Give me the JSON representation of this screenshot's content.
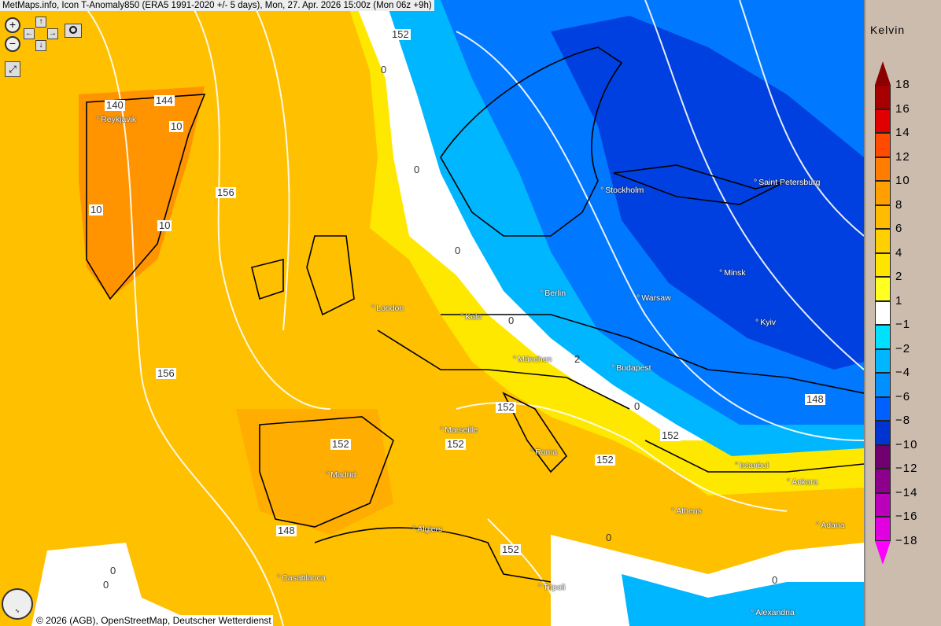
{
  "header": {
    "title": "MetMaps.info, Icon T-Anomaly850 (ERA5 1991-2020 +/- 5 days), Mon, 27. Apr. 2026 15:00z (Mon 06z +9h)"
  },
  "controls": {
    "zoom_in": "zoom-in-icon",
    "zoom_out": "zoom-out-icon",
    "pan_up": "↑",
    "pan_down": "↓",
    "pan_left": "←",
    "pan_right": "→",
    "camera": "camera-icon",
    "fullscreen": "fullscreen-icon"
  },
  "cities": [
    "Reykjavik",
    "London",
    "Koln",
    "Berlin",
    "Stockholm",
    "Saint Petersburg",
    "Minsk",
    "Warsaw",
    "Kyiv",
    "München",
    "Budapest",
    "Marseille",
    "Roma",
    "Madrid",
    "Istanbul",
    "Ankara",
    "Athens",
    "Adana",
    "Algiers",
    "Casablanca",
    "Tripoli",
    "Alexandria"
  ],
  "contour_labels": [
    "152",
    "0",
    "140",
    "144",
    "10",
    "156",
    "10",
    "10",
    "0",
    "0",
    "0",
    "156",
    "2",
    "152",
    "0",
    "148",
    "152",
    "152",
    "152",
    "152",
    "148",
    "152",
    "0",
    "0",
    "0",
    "0"
  ],
  "legend": {
    "unit": "Kelvin",
    "labels": [
      "18",
      "16",
      "14",
      "12",
      "10",
      "8",
      "6",
      "4",
      "2",
      "1",
      "−1",
      "−2",
      "−4",
      "−6",
      "−8",
      "−10",
      "−12",
      "−14",
      "−16",
      "−18"
    ],
    "colors": [
      "#a80000",
      "#e00000",
      "#ff4a00",
      "#ff7d00",
      "#ff9f00",
      "#ffbb00",
      "#ffd000",
      "#ffe400",
      "#ffff20",
      "#ffffff",
      "#00e0ff",
      "#00b6ff",
      "#0090ff",
      "#0060ff",
      "#0034d0",
      "#700070",
      "#8c008c",
      "#bb00bb",
      "#e000e0"
    ],
    "arrow_top_color": "#8b0000",
    "arrow_bottom_color": "#ff00ff"
  },
  "footer": {
    "logo": "METMAPS",
    "copyright": "© 2026 (AGB), OpenStreetMap, Deutscher Wetterdienst"
  }
}
